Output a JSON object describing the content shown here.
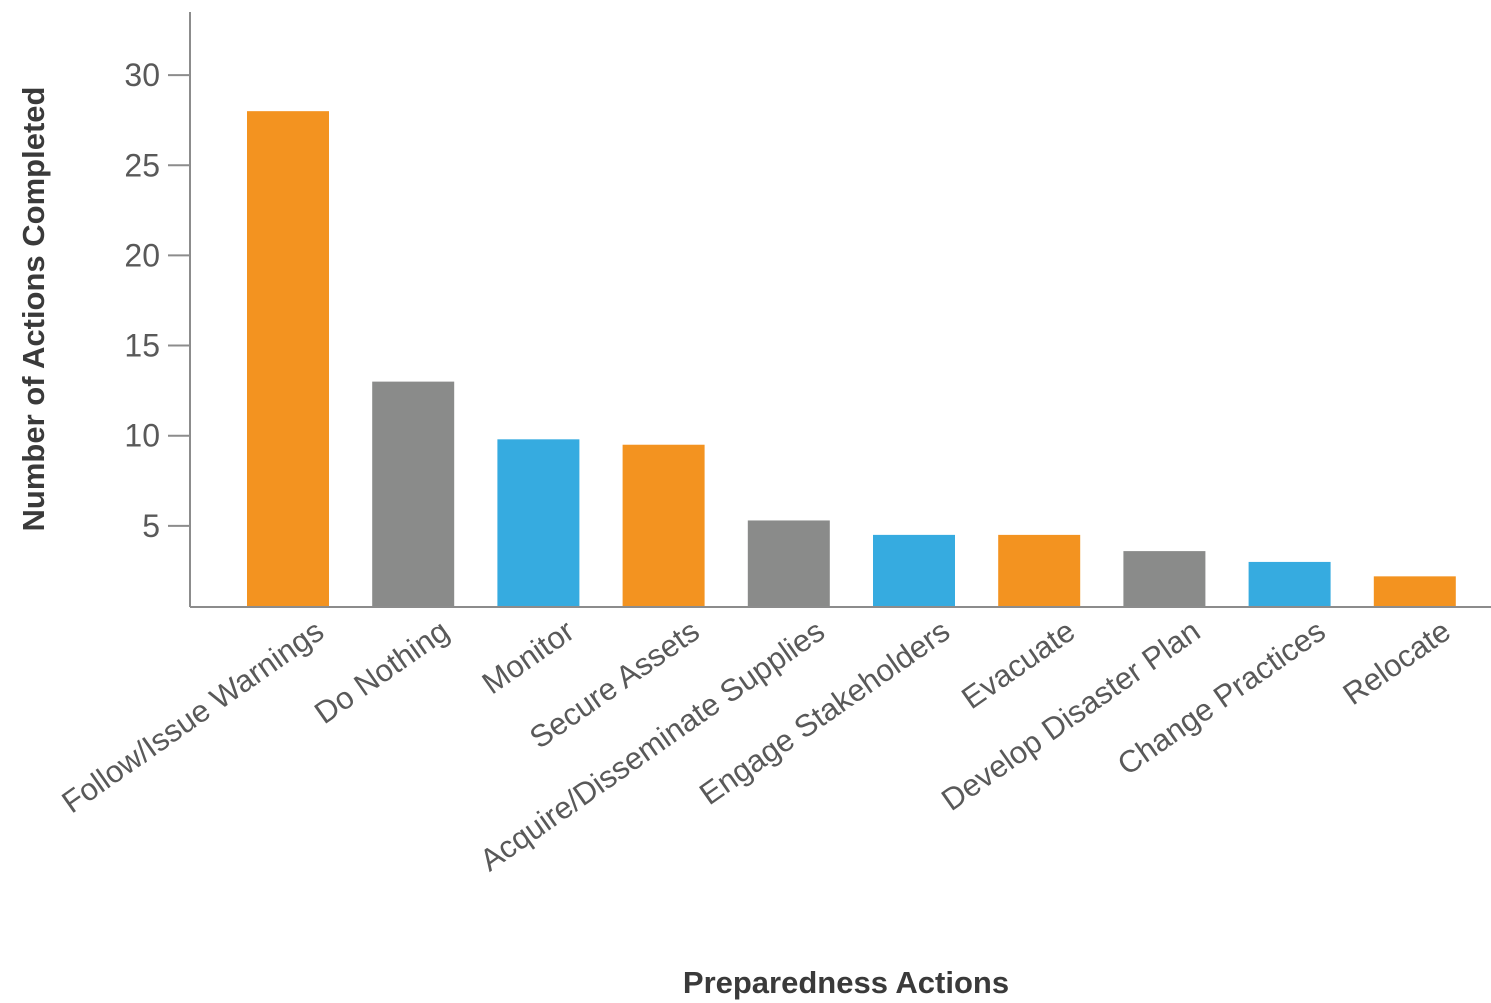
{
  "chart_data": {
    "type": "bar",
    "title": "",
    "xlabel": "Preparedness Actions",
    "ylabel": "Number of Actions Completed",
    "categories": [
      "Follow/Issue Warnings",
      "Do Nothing",
      "Monitor",
      "Secure Assets",
      "Acquire/Disseminate Supplies",
      "Engage Stakeholders",
      "Evacuate",
      "Develop Disaster Plan",
      "Change Practices",
      "Relocate"
    ],
    "values": [
      28,
      13,
      9.8,
      9.5,
      5.3,
      4.5,
      4.5,
      3.6,
      3,
      2.2
    ],
    "bar_colors": [
      "#f39320",
      "#8a8b8a",
      "#36abe0",
      "#f39320",
      "#8a8b8a",
      "#36abe0",
      "#f39320",
      "#8a8b8a",
      "#36abe0",
      "#f39320"
    ],
    "yticks": [
      5,
      10,
      15,
      20,
      25,
      30
    ],
    "ylim": [
      0.5,
      33.5
    ],
    "grid": false,
    "legend": "none"
  }
}
